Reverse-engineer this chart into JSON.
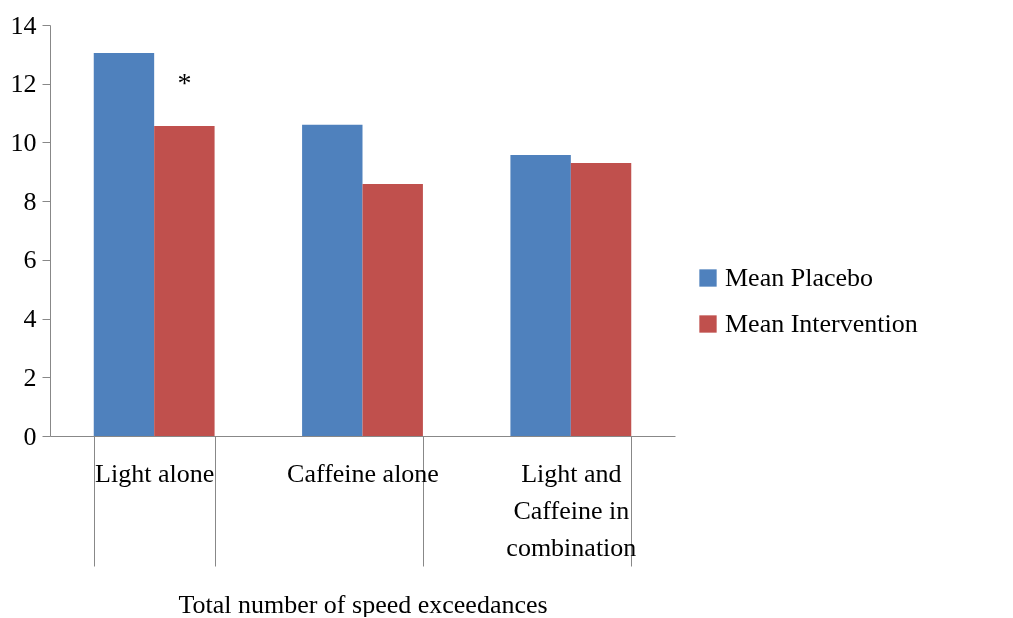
{
  "chart_data": {
    "type": "bar",
    "categories": [
      "Light alone",
      "Caffeine alone",
      "Light  and Caffeine in combination"
    ],
    "series": [
      {
        "name": "Mean Placebo",
        "color": "#4f81bd",
        "values": [
          13.05,
          10.6,
          9.57
        ]
      },
      {
        "name": "Mean Intervention",
        "color": "#c0504d",
        "values": [
          10.56,
          8.58,
          9.3
        ]
      }
    ],
    "xlabel": "Total number of speed exceedances",
    "ylim": [
      0,
      14
    ],
    "yticks": [
      0,
      2,
      4,
      6,
      8,
      10,
      12,
      14
    ],
    "grid": false,
    "legend": "right",
    "annotations": [
      {
        "text": "*",
        "x": "Light alone",
        "y": 10.56
      }
    ]
  }
}
